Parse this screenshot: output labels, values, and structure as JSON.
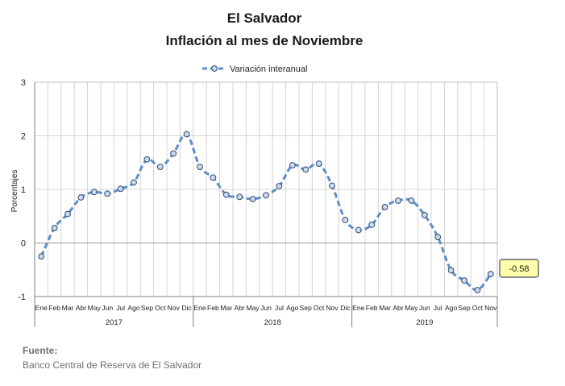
{
  "chart_data": {
    "type": "line",
    "title": "El Salvador",
    "subtitle": "Inflación al mes de Noviembre",
    "ylabel": "Porcentajes",
    "xlabel": "",
    "ylim": [
      -1,
      3
    ],
    "yticks": [
      "3",
      "2",
      "1",
      "0",
      "-1"
    ],
    "grid": true,
    "legend_position": "top-center",
    "colors": {
      "line": "#5b8fc9",
      "marker_fill": "#c9daee",
      "marker_stroke": "#2f4b6e",
      "callout_fill": "#ffffa8",
      "callout_border": "#3a4a5c"
    },
    "month_labels": [
      "Ene",
      "Feb",
      "Mar",
      "Abr",
      "May",
      "Jun",
      "Jul",
      "Ago",
      "Sep",
      "Oct",
      "Nov",
      "Dic"
    ],
    "years": [
      {
        "label": "2017",
        "months": 12
      },
      {
        "label": "2018",
        "months": 12
      },
      {
        "label": "2019",
        "months": 11
      }
    ],
    "series": [
      {
        "name": "Variación interanual",
        "values": [
          -0.25,
          0.28,
          0.54,
          0.85,
          0.95,
          0.92,
          1.01,
          1.13,
          1.56,
          1.42,
          1.67,
          2.03,
          1.42,
          1.22,
          0.9,
          0.86,
          0.82,
          0.89,
          1.06,
          1.45,
          1.37,
          1.48,
          1.07,
          0.43,
          0.24,
          0.34,
          0.67,
          0.79,
          0.79,
          0.52,
          0.11,
          -0.51,
          -0.7,
          -0.88,
          -0.58
        ]
      }
    ],
    "annotation": "-0.58"
  },
  "source": {
    "label": "Fuente:",
    "text": "Banco Central de Reserva de El Salvador"
  }
}
